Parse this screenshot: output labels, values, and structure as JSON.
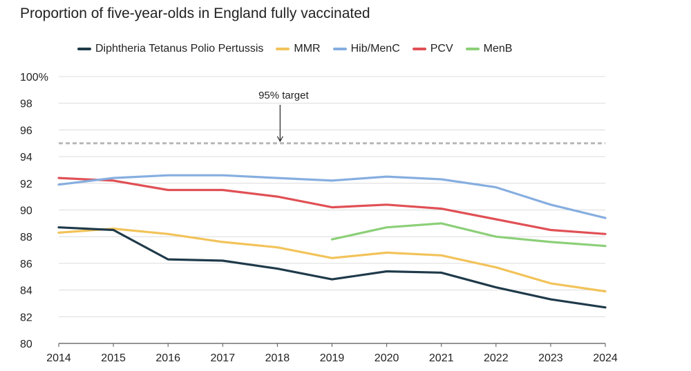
{
  "chart_data": {
    "type": "line",
    "title": "Proportion of five-year-olds in England fully vaccinated",
    "xlabel": "",
    "ylabel": "",
    "x": [
      2014,
      2015,
      2016,
      2017,
      2018,
      2019,
      2020,
      2021,
      2022,
      2023,
      2024
    ],
    "x_tick_labels": [
      "2014",
      "2015",
      "2016",
      "2017",
      "2018",
      "2019",
      "2020",
      "2021",
      "2022",
      "2023",
      "2024"
    ],
    "ylim": [
      80,
      100
    ],
    "y_ticks": [
      80,
      82,
      84,
      86,
      88,
      90,
      92,
      94,
      96,
      98,
      100
    ],
    "y_tick_labels": [
      "80",
      "82",
      "84",
      "86",
      "88",
      "90",
      "92",
      "94",
      "96",
      "98",
      "100%"
    ],
    "grid": true,
    "legend_position": "top",
    "series": [
      {
        "name": "Diphtheria Tetanus Polio Pertussis",
        "color": "#1f3a4a",
        "values": [
          88.7,
          88.5,
          86.3,
          86.2,
          85.6,
          84.8,
          85.4,
          85.3,
          84.2,
          83.3,
          82.7
        ]
      },
      {
        "name": "MMR",
        "color": "#f2c35a",
        "values": [
          88.3,
          88.6,
          88.2,
          87.6,
          87.2,
          86.4,
          86.8,
          86.6,
          85.7,
          84.5,
          83.9
        ]
      },
      {
        "name": "Hib/MenC",
        "color": "#86aee0",
        "values": [
          91.9,
          92.4,
          92.6,
          92.6,
          92.4,
          92.2,
          92.5,
          92.3,
          91.7,
          90.4,
          89.4
        ]
      },
      {
        "name": "PCV",
        "color": "#e05055",
        "values": [
          92.4,
          92.2,
          91.5,
          91.5,
          91.0,
          90.2,
          90.4,
          90.1,
          89.3,
          88.5,
          88.2
        ]
      },
      {
        "name": "MenB",
        "color": "#8ccf78",
        "values": [
          null,
          null,
          null,
          null,
          null,
          87.8,
          88.7,
          89.0,
          88.0,
          87.6,
          87.3
        ]
      }
    ],
    "reference_line": {
      "value": 95,
      "label": "95% target",
      "color": "#b8b8b8"
    },
    "annotation": {
      "text": "95% target",
      "x": 2018.05
    }
  }
}
